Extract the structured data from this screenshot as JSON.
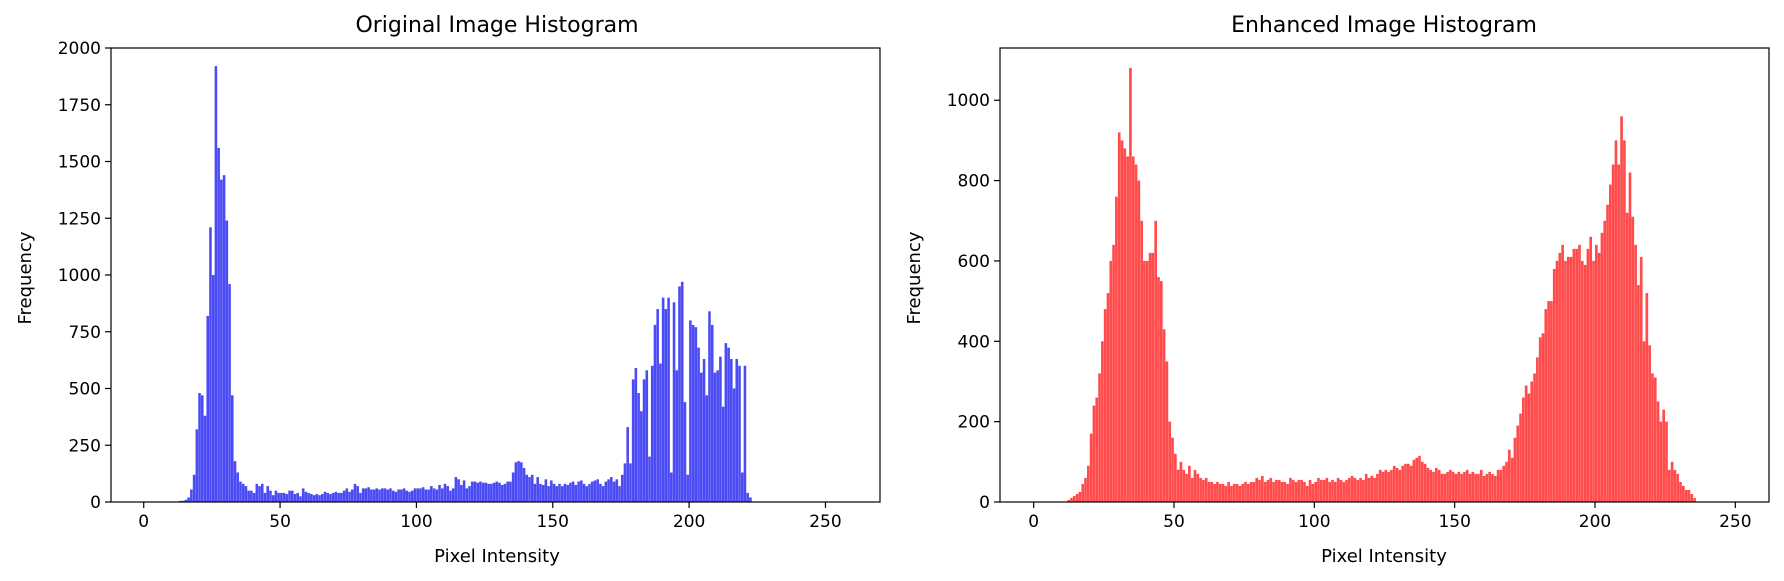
{
  "chart_data": [
    {
      "type": "bar",
      "title": "Original Image Histogram",
      "xlabel": "Pixel Intensity",
      "ylabel": "Frequency",
      "xlim": [
        -12,
        270
      ],
      "ylim": [
        0,
        2000
      ],
      "xticks": [
        0,
        50,
        100,
        150,
        200,
        250
      ],
      "yticks": [
        0,
        250,
        500,
        750,
        1000,
        1250,
        1500,
        1750,
        2000
      ],
      "xtick_labels": [
        "0",
        "50",
        "100",
        "150",
        "200",
        "250"
      ],
      "ytick_labels": [
        "0",
        "250",
        "500",
        "750",
        "1000",
        "1250",
        "1500",
        "1750",
        "2000"
      ],
      "color": "#4b4bf5",
      "bin_start": 0,
      "values": [
        0,
        0,
        0,
        0,
        0,
        0,
        0,
        0,
        0,
        0,
        0,
        0,
        0,
        5,
        5,
        10,
        20,
        55,
        120,
        320,
        480,
        470,
        380,
        820,
        1210,
        1000,
        1920,
        1560,
        1420,
        1440,
        1240,
        960,
        470,
        180,
        130,
        90,
        80,
        70,
        50,
        50,
        40,
        80,
        70,
        80,
        40,
        70,
        50,
        30,
        50,
        40,
        40,
        40,
        35,
        50,
        50,
        35,
        40,
        25,
        60,
        45,
        40,
        35,
        30,
        35,
        30,
        35,
        45,
        40,
        35,
        40,
        45,
        40,
        40,
        50,
        60,
        45,
        55,
        80,
        70,
        40,
        60,
        60,
        65,
        55,
        55,
        60,
        55,
        60,
        60,
        55,
        60,
        50,
        45,
        55,
        55,
        60,
        50,
        45,
        50,
        60,
        60,
        60,
        65,
        55,
        55,
        70,
        60,
        55,
        75,
        60,
        80,
        70,
        50,
        60,
        110,
        100,
        75,
        95,
        60,
        70,
        90,
        90,
        85,
        90,
        85,
        85,
        80,
        80,
        85,
        90,
        85,
        75,
        80,
        90,
        90,
        130,
        175,
        180,
        175,
        150,
        120,
        110,
        120,
        80,
        110,
        80,
        75,
        100,
        70,
        95,
        80,
        70,
        80,
        70,
        80,
        75,
        85,
        90,
        75,
        90,
        95,
        80,
        70,
        80,
        90,
        95,
        100,
        80,
        70,
        90,
        100,
        110,
        90,
        100,
        70,
        120,
        170,
        330,
        170,
        540,
        590,
        480,
        400,
        540,
        580,
        200,
        600,
        780,
        850,
        610,
        900,
        850,
        900,
        130,
        880,
        580,
        950,
        970,
        440,
        120,
        800,
        780,
        770,
        680,
        570,
        630,
        470,
        840,
        780,
        570,
        580,
        640,
        420,
        700,
        680,
        630,
        500,
        630,
        600,
        130,
        600,
        40,
        20
      ]
    },
    {
      "type": "bar",
      "title": "Enhanced Image Histogram",
      "xlabel": "Pixel Intensity",
      "ylabel": "Frequency",
      "xlim": [
        -12,
        262
      ],
      "ylim": [
        0,
        1130
      ],
      "xticks": [
        0,
        50,
        100,
        150,
        200,
        250
      ],
      "yticks": [
        0,
        200,
        400,
        600,
        800,
        1000
      ],
      "xtick_labels": [
        "0",
        "50",
        "100",
        "150",
        "200",
        "250"
      ],
      "ytick_labels": [
        "0",
        "200",
        "400",
        "600",
        "800",
        "1000"
      ],
      "color": "#ff4b4b",
      "bin_start": 0,
      "values": [
        0,
        0,
        0,
        0,
        0,
        0,
        0,
        0,
        0,
        0,
        0,
        0,
        5,
        10,
        15,
        20,
        25,
        45,
        60,
        90,
        170,
        240,
        260,
        320,
        400,
        480,
        520,
        600,
        640,
        760,
        920,
        900,
        880,
        860,
        1080,
        860,
        840,
        800,
        700,
        600,
        600,
        620,
        620,
        700,
        560,
        550,
        430,
        350,
        200,
        160,
        120,
        80,
        100,
        80,
        70,
        90,
        60,
        80,
        70,
        60,
        55,
        60,
        50,
        50,
        45,
        50,
        45,
        45,
        40,
        50,
        40,
        45,
        45,
        40,
        45,
        50,
        45,
        50,
        50,
        60,
        55,
        65,
        50,
        55,
        60,
        50,
        55,
        55,
        50,
        50,
        45,
        60,
        55,
        50,
        55,
        55,
        50,
        40,
        55,
        45,
        50,
        60,
        55,
        55,
        60,
        50,
        55,
        50,
        60,
        55,
        50,
        55,
        60,
        65,
        60,
        55,
        60,
        55,
        70,
        60,
        65,
        60,
        70,
        80,
        75,
        80,
        75,
        80,
        90,
        85,
        80,
        90,
        95,
        95,
        90,
        105,
        110,
        115,
        100,
        95,
        85,
        80,
        75,
        85,
        80,
        70,
        70,
        75,
        80,
        75,
        70,
        75,
        70,
        75,
        80,
        70,
        75,
        70,
        70,
        80,
        65,
        70,
        75,
        70,
        65,
        80,
        80,
        90,
        100,
        130,
        110,
        160,
        190,
        220,
        260,
        290,
        270,
        300,
        320,
        360,
        410,
        420,
        480,
        500,
        500,
        580,
        600,
        620,
        640,
        600,
        610,
        610,
        630,
        630,
        640,
        600,
        590,
        630,
        660,
        600,
        640,
        620,
        670,
        700,
        740,
        790,
        840,
        900,
        840,
        960,
        900,
        720,
        820,
        710,
        640,
        540,
        610,
        400,
        520,
        390,
        320,
        310,
        250,
        200,
        230,
        200,
        80,
        100,
        80,
        70,
        50,
        40,
        30,
        30,
        20,
        10,
        0,
        0,
        0,
        0,
        0,
        0,
        0,
        0,
        0,
        0,
        0
      ]
    }
  ]
}
